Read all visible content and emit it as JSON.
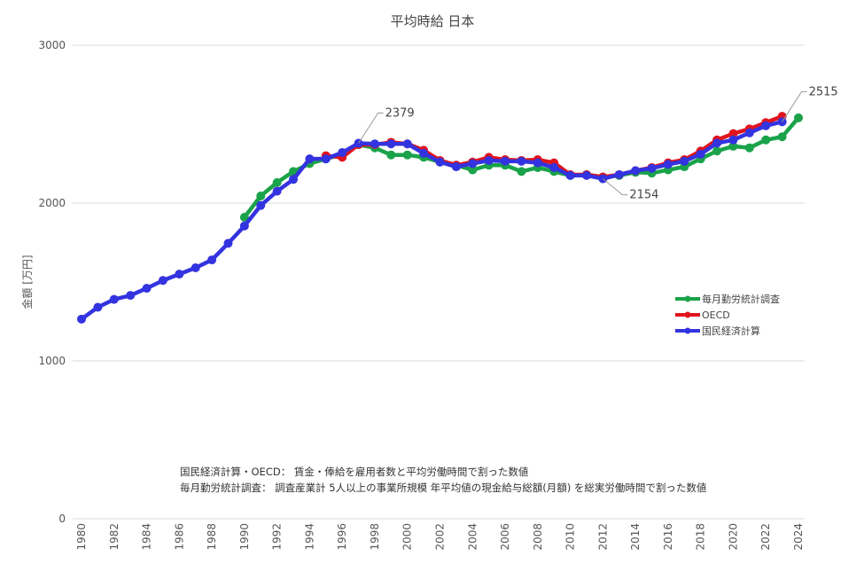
{
  "chart_data": {
    "type": "line",
    "title": "平均時給 日本",
    "xlabel": "",
    "ylabel": "金額 [万円]",
    "ylim": [
      0,
      3000
    ],
    "xlim": [
      1980,
      2024
    ],
    "yticks": [
      "0",
      "1000",
      "2000",
      "3000"
    ],
    "xticks": [
      "1980",
      "1982",
      "1984",
      "1986",
      "1988",
      "1990",
      "1992",
      "1994",
      "1996",
      "1998",
      "2000",
      "2002",
      "2004",
      "2006",
      "2008",
      "2010",
      "2012",
      "2014",
      "2016",
      "2018",
      "2020",
      "2022",
      "2024"
    ],
    "grid": true,
    "legend_position": "right",
    "series": [
      {
        "name": "毎月勤労統計調査",
        "color": "#1aa34a",
        "start": 1990,
        "values": [
          1910,
          2045,
          2130,
          2200,
          2250,
          2280,
          2310,
          2370,
          2350,
          2305,
          2305,
          2290,
          2260,
          2240,
          2210,
          2240,
          2240,
          2200,
          2225,
          2200,
          2175,
          2180,
          2165,
          2175,
          2195,
          2190,
          2210,
          2230,
          2280,
          2330,
          2360,
          2350,
          2400,
          2420,
          2540
        ]
      },
      {
        "name": "OECD",
        "color": "#e0141e",
        "start": 1995,
        "values": [
          2300,
          2290,
          2370,
          2370,
          2385,
          2375,
          2335,
          2270,
          2240,
          2260,
          2290,
          2275,
          2270,
          2275,
          2255,
          2180,
          2180,
          2165,
          2180,
          2205,
          2225,
          2255,
          2275,
          2330,
          2400,
          2440,
          2470,
          2510,
          2550
        ]
      },
      {
        "name": "国民経済計算",
        "color": "#3333e0",
        "start": 1980,
        "values": [
          1265,
          1340,
          1390,
          1415,
          1460,
          1510,
          1550,
          1590,
          1640,
          1745,
          1855,
          1985,
          2075,
          2150,
          2280,
          2280,
          2320,
          2379,
          2375,
          2375,
          2375,
          2315,
          2260,
          2230,
          2250,
          2270,
          2265,
          2265,
          2255,
          2225,
          2175,
          2175,
          2154,
          2180,
          2205,
          2220,
          2245,
          2265,
          2310,
          2380,
          2400,
          2445,
          2490,
          2515
        ]
      }
    ],
    "annotations": [
      {
        "text": "2379",
        "series": "国民経済計算",
        "x": 1997,
        "y": 2379
      },
      {
        "text": "2154",
        "series": "国民経済計算",
        "x": 2012,
        "y": 2154
      },
      {
        "text": "2515",
        "series": "国民経済計算",
        "x": 2023,
        "y": 2515
      }
    ],
    "notes": [
      "国民経済計算・OECD： 賃金・俸給を雇用者数と平均労働時間で割った数値",
      "毎月勤労統計調査： 調査産業計 5人以上の事業所規模 年平均値の現金給与総額(月額) を総実労働時間で割った数値"
    ]
  }
}
